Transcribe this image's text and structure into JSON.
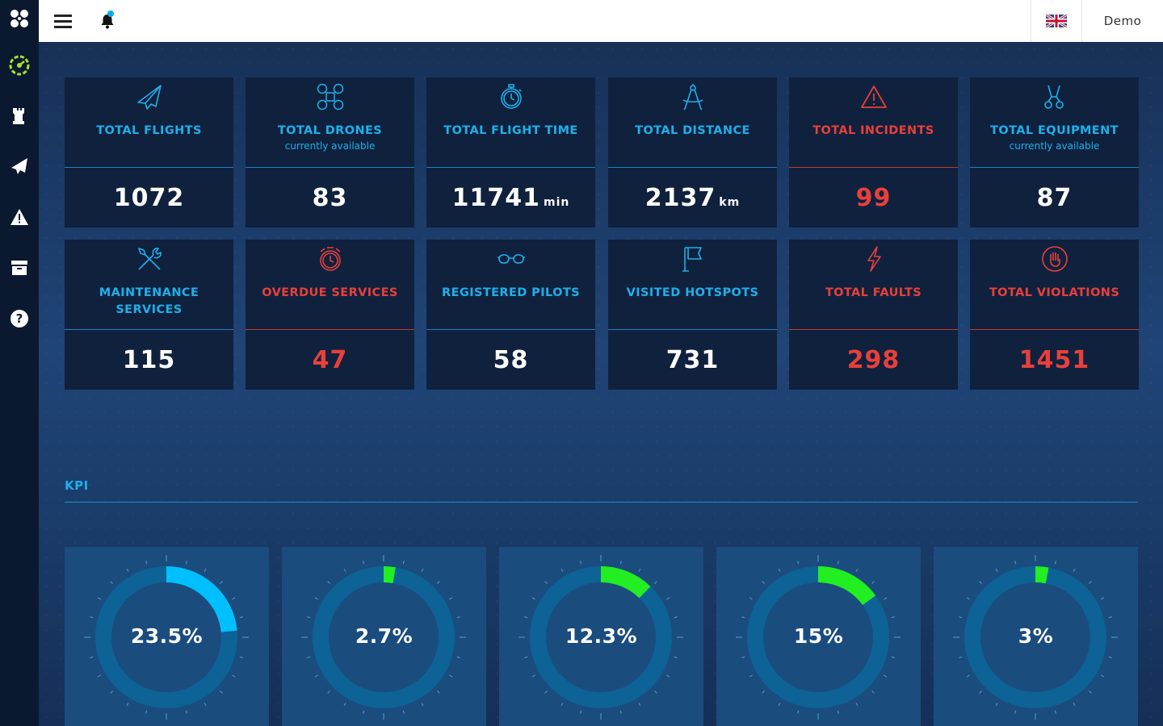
{
  "sidebar": {
    "items": [
      {
        "name": "app-logo-icon"
      },
      {
        "name": "dashboard-icon"
      },
      {
        "name": "chess-rook-icon"
      },
      {
        "name": "paper-plane-icon"
      },
      {
        "name": "warning-icon"
      },
      {
        "name": "archive-icon"
      },
      {
        "name": "help-icon"
      }
    ]
  },
  "topbar": {
    "user": "Demo",
    "language_icon": "uk-flag-icon"
  },
  "stats": [
    {
      "label": "TOTAL FLIGHTS",
      "sub": "",
      "value": "1072",
      "unit": "",
      "icon": "paper-plane-icon",
      "alert": false
    },
    {
      "label": "TOTAL DRONES",
      "sub": "currently available",
      "value": "83",
      "unit": "",
      "icon": "drone-icon",
      "alert": false
    },
    {
      "label": "TOTAL FLIGHT TIME",
      "sub": "",
      "value": "11741",
      "unit": "min",
      "icon": "stopwatch-icon",
      "alert": false
    },
    {
      "label": "TOTAL DISTANCE",
      "sub": "",
      "value": "2137",
      "unit": "km",
      "icon": "compass-icon",
      "alert": false
    },
    {
      "label": "TOTAL INCIDENTS",
      "sub": "",
      "value": "99",
      "unit": "",
      "icon": "warning-icon",
      "alert": true
    },
    {
      "label": "TOTAL EQUIPMENT",
      "sub": "currently available",
      "value": "87",
      "unit": "",
      "icon": "equipment-icon",
      "alert": false
    },
    {
      "label": "MAINTENANCE SERVICES",
      "sub": "",
      "value": "115",
      "unit": "",
      "icon": "tools-icon",
      "alert": false
    },
    {
      "label": "OVERDUE SERVICES",
      "sub": "",
      "value": "47",
      "unit": "",
      "icon": "alarm-clock-icon",
      "alert": true
    },
    {
      "label": "REGISTERED PILOTS",
      "sub": "",
      "value": "58",
      "unit": "",
      "icon": "goggles-icon",
      "alert": false
    },
    {
      "label": "VISITED HOTSPOTS",
      "sub": "",
      "value": "731",
      "unit": "",
      "icon": "flag-icon",
      "alert": false
    },
    {
      "label": "TOTAL FAULTS",
      "sub": "",
      "value": "298",
      "unit": "",
      "icon": "lightning-icon",
      "alert": true
    },
    {
      "label": "TOTAL VIOLATIONS",
      "sub": "",
      "value": "1451",
      "unit": "",
      "icon": "hand-stop-icon",
      "alert": true
    }
  ],
  "kpi": {
    "title": "KPI",
    "items": [
      {
        "label": "23.5%",
        "percent": 23.5,
        "color": "#00bfff"
      },
      {
        "label": "2.7%",
        "percent": 2.7,
        "color": "#22ee22"
      },
      {
        "label": "12.3%",
        "percent": 12.3,
        "color": "#22ee22"
      },
      {
        "label": "15%",
        "percent": 15,
        "color": "#22ee22"
      },
      {
        "label": "3%",
        "percent": 3,
        "color": "#22ee22"
      }
    ]
  },
  "colors": {
    "accent": "#1eb0ea",
    "alert": "#e8403a",
    "card_bg": "#10213e",
    "sidebar_bg": "#0b1930",
    "ring_track": "#0d6296"
  }
}
